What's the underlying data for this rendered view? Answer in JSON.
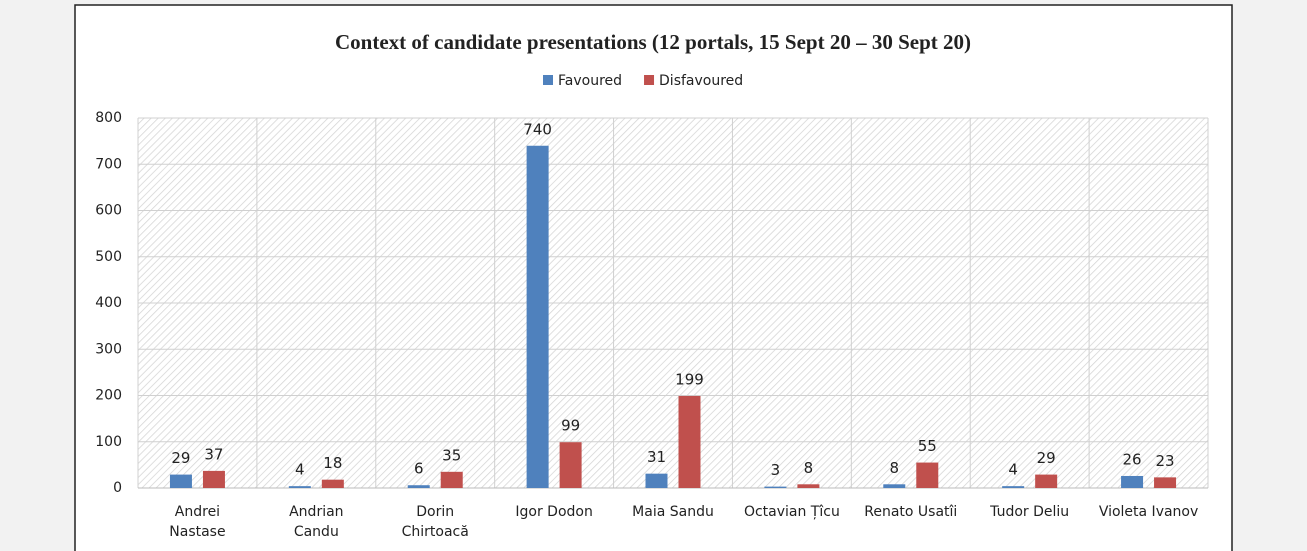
{
  "chart_data": {
    "type": "bar",
    "title": "Context of candidate presentations (12 portals, 15 Sept 20 – 30 Sept 20)",
    "categories": [
      [
        "Andrei",
        "Nastase"
      ],
      [
        "Andrian",
        "Candu"
      ],
      [
        "Dorin",
        "Chirtoacă"
      ],
      [
        "Igor Dodon"
      ],
      [
        "Maia Sandu"
      ],
      [
        "Octavian Țîcu"
      ],
      [
        "Renato Usatîi"
      ],
      [
        "Tudor Deliu"
      ],
      [
        "Violeta Ivanov"
      ]
    ],
    "series": [
      {
        "name": "Favoured",
        "color": "#4f81bd",
        "values": [
          29,
          4,
          6,
          740,
          31,
          3,
          8,
          4,
          26
        ]
      },
      {
        "name": "Disfavoured",
        "color": "#c0504d",
        "values": [
          37,
          18,
          35,
          99,
          199,
          8,
          55,
          29,
          23
        ]
      }
    ],
    "ylim": [
      0,
      800
    ],
    "yticks": [
      0,
      100,
      200,
      300,
      400,
      500,
      600,
      700,
      800
    ],
    "grid": true,
    "legend": "top"
  }
}
